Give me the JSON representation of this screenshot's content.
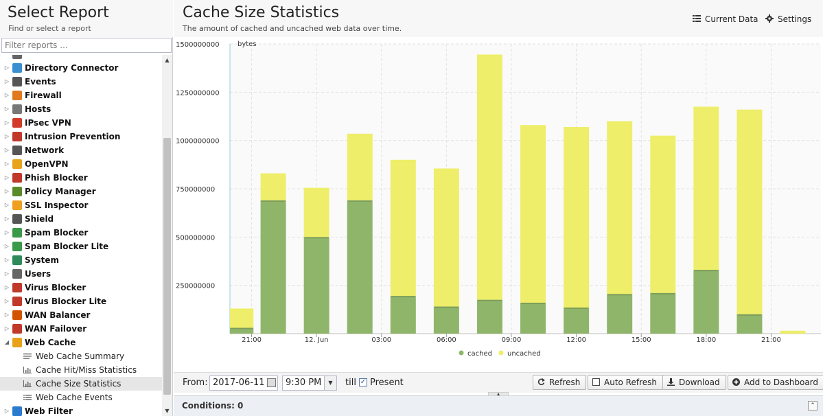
{
  "sidebar": {
    "title": "Select Report",
    "subtitle": "Find or select a report",
    "filter_placeholder": "Filter reports ...",
    "items": [
      {
        "label": "Directory Connector",
        "icon": "directory-connector-icon",
        "color": "#3a8fd0"
      },
      {
        "label": "Events",
        "icon": "events-icon",
        "color": "#555555"
      },
      {
        "label": "Firewall",
        "icon": "firewall-icon",
        "color": "#e07a1f"
      },
      {
        "label": "Hosts",
        "icon": "hosts-icon",
        "color": "#777777"
      },
      {
        "label": "IPsec VPN",
        "icon": "ipsec-vpn-icon",
        "color": "#d23a2a"
      },
      {
        "label": "Intrusion Prevention",
        "icon": "intrusion-prevention-icon",
        "color": "#c0392b"
      },
      {
        "label": "Network",
        "icon": "network-icon",
        "color": "#555555"
      },
      {
        "label": "OpenVPN",
        "icon": "openvpn-icon",
        "color": "#e8a21a"
      },
      {
        "label": "Phish Blocker",
        "icon": "phish-blocker-icon",
        "color": "#c0392b"
      },
      {
        "label": "Policy Manager",
        "icon": "policy-manager-icon",
        "color": "#5a8a2a"
      },
      {
        "label": "SSL Inspector",
        "icon": "ssl-inspector-icon",
        "color": "#f0a020"
      },
      {
        "label": "Shield",
        "icon": "shield-icon",
        "color": "#555555"
      },
      {
        "label": "Spam Blocker",
        "icon": "spam-blocker-icon",
        "color": "#3a9a4a"
      },
      {
        "label": "Spam Blocker Lite",
        "icon": "spam-blocker-lite-icon",
        "color": "#3a9a4a"
      },
      {
        "label": "System",
        "icon": "system-icon",
        "color": "#2e8a5a"
      },
      {
        "label": "Users",
        "icon": "users-icon",
        "color": "#666666"
      },
      {
        "label": "Virus Blocker",
        "icon": "virus-blocker-icon",
        "color": "#c0392b"
      },
      {
        "label": "Virus Blocker Lite",
        "icon": "virus-blocker-lite-icon",
        "color": "#c0392b"
      },
      {
        "label": "WAN Balancer",
        "icon": "wan-balancer-icon",
        "color": "#d35400"
      },
      {
        "label": "WAN Failover",
        "icon": "wan-failover-icon",
        "color": "#c0392b"
      },
      {
        "label": "Web Cache",
        "icon": "web-cache-icon",
        "color": "#e8a21a",
        "expanded": true
      },
      {
        "label": "Web Cache Summary",
        "icon": "text-report-icon",
        "child": true
      },
      {
        "label": "Cache Hit/Miss Statistics",
        "icon": "bar-chart-icon",
        "child": true
      },
      {
        "label": "Cache Size Statistics",
        "icon": "bar-chart-icon",
        "child": true,
        "selected": true
      },
      {
        "label": "Web Cache Events",
        "icon": "list-icon",
        "child": true
      },
      {
        "label": "Web Filter",
        "icon": "web-filter-icon",
        "color": "#2a7ad0"
      }
    ]
  },
  "header": {
    "title": "Cache Size Statistics",
    "subtitle": "The amount of cached and uncached web data over time.",
    "current_data_label": "Current Data",
    "settings_label": "Settings"
  },
  "chart_data": {
    "type": "bar",
    "stacked": true,
    "ylabel": "bytes",
    "ylim": [
      0,
      1500000000
    ],
    "yticks": [
      250000000,
      500000000,
      750000000,
      1000000000,
      1250000000,
      1500000000
    ],
    "xtick_labels": [
      "21:00",
      "12. Jun",
      "03:00",
      "06:00",
      "09:00",
      "12:00",
      "15:00",
      "18:00",
      "21:00"
    ],
    "xticks_hours": [
      1,
      4,
      7,
      10,
      13,
      16,
      19,
      22,
      25
    ],
    "x_hours": [
      0.5,
      2,
      4,
      6,
      8,
      10,
      12,
      14,
      16,
      18,
      20,
      22,
      24,
      26
    ],
    "series": [
      {
        "name": "cached",
        "color": "#8fb56a",
        "values": [
          30000000,
          690000000,
          500000000,
          690000000,
          195000000,
          140000000,
          175000000,
          160000000,
          135000000,
          205000000,
          210000000,
          330000000,
          100000000,
          0
        ]
      },
      {
        "name": "uncached",
        "color": "#eeee6a",
        "values": [
          100000000,
          140000000,
          255000000,
          345000000,
          705000000,
          715000000,
          1270000000,
          920000000,
          935000000,
          895000000,
          815000000,
          845000000,
          1060000000,
          15000000
        ]
      }
    ],
    "legend": "bottom",
    "grid": true
  },
  "toolbar": {
    "from_label": "From:",
    "from_date": "2017-06-11",
    "from_time": "9:30 PM",
    "till_label": "till",
    "present_label": "Present",
    "refresh_label": "Refresh",
    "auto_refresh_label": "Auto Refresh",
    "download_label": "Download",
    "add_dashboard_label": "Add to Dashboard"
  },
  "conditions": {
    "label": "Conditions: 0"
  }
}
